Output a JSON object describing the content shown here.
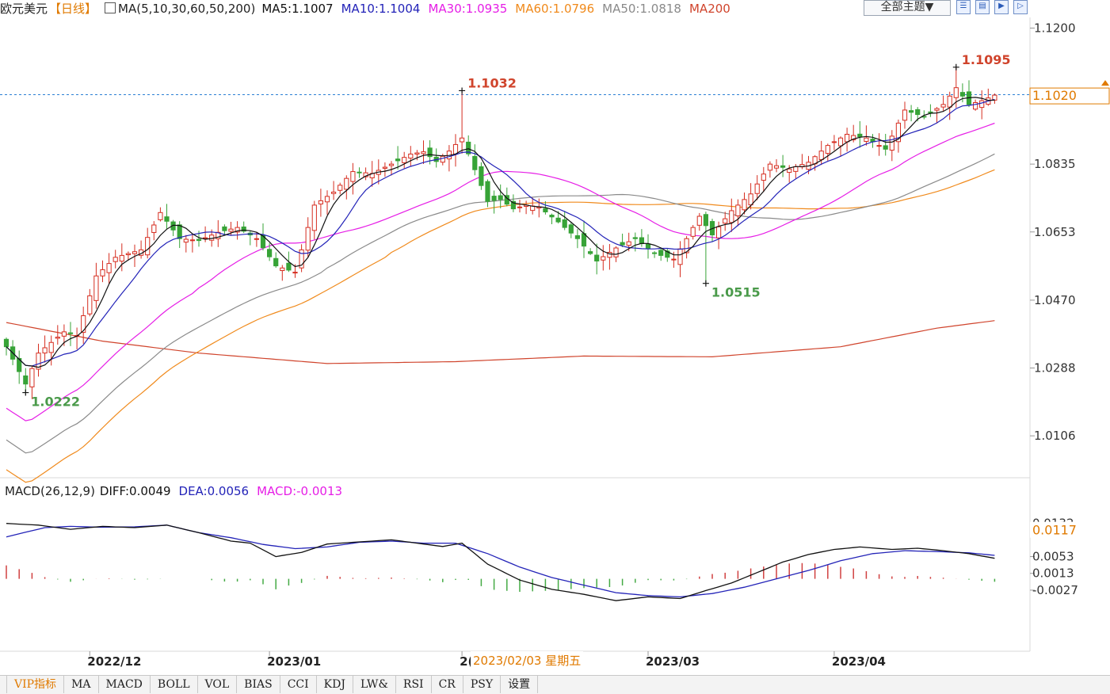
{
  "header": {
    "symbol": "欧元美元",
    "period": "【日线】",
    "ma_title": "MA(5,10,30,60,50,200)",
    "ma_values": [
      {
        "label": "MA5:1.1007",
        "color": "#111111"
      },
      {
        "label": "MA10:1.1004",
        "color": "#2323b8"
      },
      {
        "label": "MA30:1.0935",
        "color": "#e61ee6"
      },
      {
        "label": "MA60:1.0796",
        "color": "#f08a1c"
      },
      {
        "label": "MA50:1.0818",
        "color": "#8a8a8a"
      },
      {
        "label": "MA200",
        "color": "#d0442c"
      }
    ],
    "theme_button": "全部主题▼",
    "tool_icons": [
      "chart-toolbar-icon-1",
      "chart-toolbar-icon-2",
      "chart-toolbar-icon-3",
      "chart-toolbar-icon-4"
    ]
  },
  "macd_header": {
    "title": "MACD(26,12,9)",
    "diff": "DIFF:0.0049",
    "dea": "DEA:0.0056",
    "macd": "MACD:-0.0013"
  },
  "date_tooltip": "2023/02/03 星期五",
  "tabs": [
    "VIP指标",
    "MA",
    "MACD",
    "BOLL",
    "VOL",
    "BIAS",
    "CCI",
    "KDJ",
    "LW&",
    "RSI",
    "CR",
    "PSY",
    "设置"
  ],
  "colors": {
    "up": "#d62d20",
    "down": "#37a337",
    "ma5": "#111111",
    "ma10": "#2323b8",
    "ma30": "#e61ee6",
    "ma60": "#f08a1c",
    "ma50": "#8a8a8a",
    "ma200": "#d0442c",
    "diff": "#111111",
    "dea": "#2323b8",
    "crosshair": "#2a7fd4",
    "highlight": "#e07a00"
  },
  "chart_data": {
    "type": "candlestick",
    "title": "欧元美元 【日线】",
    "price_axis": {
      "ylim": [
        1.0,
        1.122
      ],
      "ticks": [
        "1.1200",
        "1.1017",
        "1.0835",
        "1.0653",
        "1.0470",
        "1.0288",
        "1.0106"
      ]
    },
    "current_price_marker": "1.1020",
    "date_axis": {
      "labels": [
        "2022/12",
        "2023/01",
        "2(",
        "2023/03",
        "2023/04"
      ],
      "label_at_index": [
        13,
        41,
        71,
        100,
        129
      ]
    },
    "annotations": [
      {
        "text": "1.1032",
        "index": 71,
        "type": "high"
      },
      {
        "text": "1.1095",
        "index": 148,
        "type": "high"
      },
      {
        "text": "1.0222",
        "index": 3,
        "type": "low"
      },
      {
        "text": "1.0515",
        "index": 109,
        "type": "low"
      }
    ],
    "close_anchors": [
      [
        0,
        1.0345
      ],
      [
        3,
        1.0245
      ],
      [
        5,
        1.0328
      ],
      [
        9,
        1.0385
      ],
      [
        11,
        1.0375
      ],
      [
        14,
        1.0535
      ],
      [
        17,
        1.0585
      ],
      [
        21,
        1.0605
      ],
      [
        24,
        1.0705
      ],
      [
        27,
        1.0635
      ],
      [
        30,
        1.063
      ],
      [
        33,
        1.0652
      ],
      [
        36,
        1.0665
      ],
      [
        39,
        1.0635
      ],
      [
        42,
        1.0562
      ],
      [
        45,
        1.0545
      ],
      [
        48,
        1.0725
      ],
      [
        51,
        1.076
      ],
      [
        54,
        1.0815
      ],
      [
        57,
        1.081
      ],
      [
        60,
        1.0835
      ],
      [
        63,
        1.0862
      ],
      [
        65,
        1.0868
      ],
      [
        67,
        1.0842
      ],
      [
        69,
        1.087
      ],
      [
        71,
        1.0905
      ],
      [
        73,
        1.082
      ],
      [
        75,
        1.0735
      ],
      [
        77,
        1.074
      ],
      [
        79,
        1.0715
      ],
      [
        81,
        1.0725
      ],
      [
        83,
        1.072
      ],
      [
        86,
        1.068
      ],
      [
        89,
        1.0635
      ],
      [
        92,
        1.0575
      ],
      [
        95,
        1.061
      ],
      [
        98,
        1.0635
      ],
      [
        101,
        1.0595
      ],
      [
        104,
        1.058
      ],
      [
        106,
        1.0635
      ],
      [
        108,
        1.0695
      ],
      [
        110,
        1.0645
      ],
      [
        113,
        1.071
      ],
      [
        116,
        1.0755
      ],
      [
        119,
        1.0835
      ],
      [
        122,
        1.0822
      ],
      [
        125,
        1.084
      ],
      [
        128,
        1.0885
      ],
      [
        131,
        1.0915
      ],
      [
        134,
        1.0905
      ],
      [
        137,
        1.0875
      ],
      [
        140,
        1.098
      ],
      [
        143,
        1.0962
      ],
      [
        146,
        1.0995
      ],
      [
        148,
        1.104
      ],
      [
        150,
        1.0995
      ],
      [
        152,
        1.1005
      ],
      [
        154,
        1.102
      ]
    ],
    "ma200_anchors": [
      [
        0,
        1.041
      ],
      [
        15,
        1.036
      ],
      [
        30,
        1.0328
      ],
      [
        50,
        1.03
      ],
      [
        70,
        1.0305
      ],
      [
        90,
        1.032
      ],
      [
        110,
        1.0318
      ],
      [
        130,
        1.0345
      ],
      [
        145,
        1.0395
      ],
      [
        154,
        1.0415
      ]
    ],
    "macd": {
      "ylim": [
        -0.0165,
        0.019
      ],
      "ticks": [
        "0.0132",
        "0.0053",
        "0.0013",
        "-0.0027"
      ],
      "marker": "0.0117",
      "diff_anchors": [
        [
          0,
          0.0132
        ],
        [
          5,
          0.0128
        ],
        [
          10,
          0.0118
        ],
        [
          15,
          0.0125
        ],
        [
          20,
          0.0122
        ],
        [
          25,
          0.0128
        ],
        [
          30,
          0.011
        ],
        [
          35,
          0.009
        ],
        [
          38,
          0.0085
        ],
        [
          42,
          0.0053
        ],
        [
          46,
          0.0063
        ],
        [
          50,
          0.0083
        ],
        [
          55,
          0.0088
        ],
        [
          60,
          0.0093
        ],
        [
          64,
          0.0085
        ],
        [
          68,
          0.0077
        ],
        [
          71,
          0.0085
        ],
        [
          75,
          0.0035
        ],
        [
          80,
          -0.0003
        ],
        [
          85,
          -0.0025
        ],
        [
          90,
          -0.0037
        ],
        [
          95,
          -0.0052
        ],
        [
          100,
          -0.0043
        ],
        [
          105,
          -0.0047
        ],
        [
          109,
          -0.0028
        ],
        [
          113,
          -0.001
        ],
        [
          117,
          0.0015
        ],
        [
          121,
          0.004
        ],
        [
          125,
          0.0058
        ],
        [
          129,
          0.007
        ],
        [
          133,
          0.0076
        ],
        [
          138,
          0.007
        ],
        [
          142,
          0.0073
        ],
        [
          146,
          0.0067
        ],
        [
          150,
          0.006
        ],
        [
          154,
          0.0049
        ]
      ],
      "dea_anchors": [
        [
          0,
          0.01
        ],
        [
          6,
          0.0122
        ],
        [
          10,
          0.0125
        ],
        [
          15,
          0.0123
        ],
        [
          20,
          0.0124
        ],
        [
          25,
          0.0128
        ],
        [
          30,
          0.011
        ],
        [
          35,
          0.0098
        ],
        [
          40,
          0.0082
        ],
        [
          45,
          0.0072
        ],
        [
          50,
          0.0076
        ],
        [
          55,
          0.0087
        ],
        [
          60,
          0.009
        ],
        [
          65,
          0.0085
        ],
        [
          70,
          0.0085
        ],
        [
          75,
          0.006
        ],
        [
          80,
          0.0028
        ],
        [
          85,
          0.0003
        ],
        [
          90,
          -0.0015
        ],
        [
          95,
          -0.0033
        ],
        [
          100,
          -0.004
        ],
        [
          105,
          -0.0043
        ],
        [
          110,
          -0.0035
        ],
        [
          115,
          -0.002
        ],
        [
          120,
          0.0
        ],
        [
          125,
          0.002
        ],
        [
          130,
          0.0043
        ],
        [
          135,
          0.006
        ],
        [
          140,
          0.0067
        ],
        [
          145,
          0.0065
        ],
        [
          150,
          0.0062
        ],
        [
          154,
          0.0056
        ]
      ]
    }
  }
}
